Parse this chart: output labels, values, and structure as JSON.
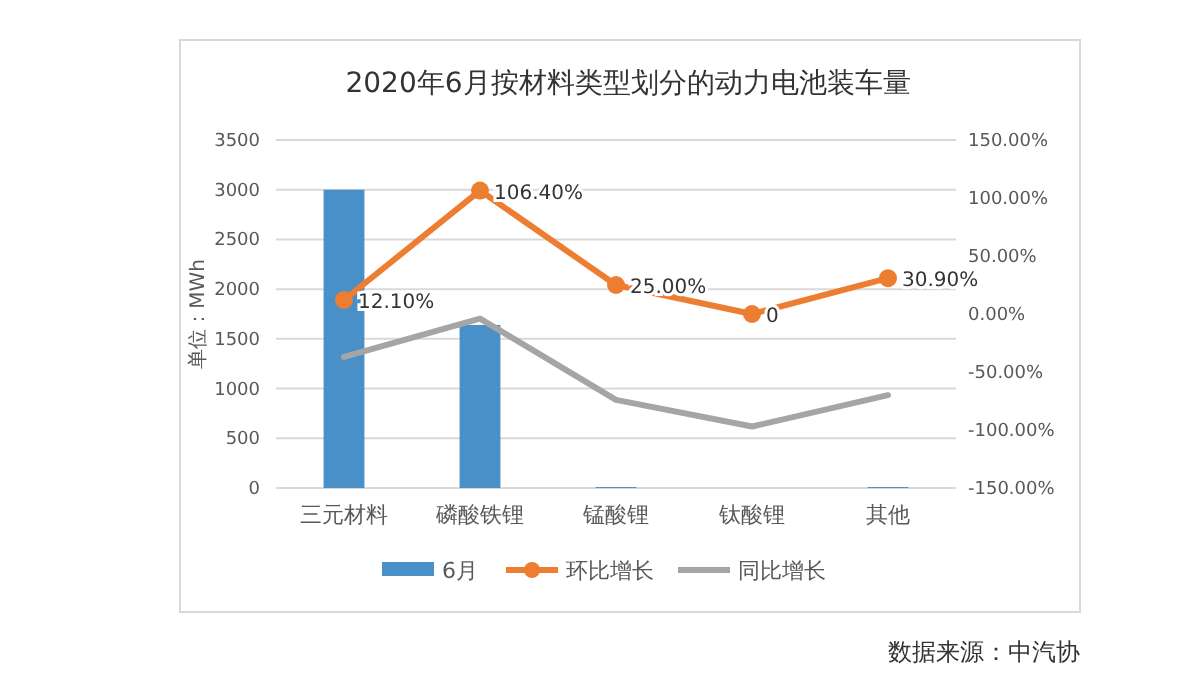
{
  "chart_data": {
    "type": "bar",
    "title": "2020年6月按材料类型划分的动力电池装车量",
    "ylabel": "单位：MWh",
    "categories": [
      "三元材料",
      "磷酸铁锂",
      "锰酸锂",
      "钛酸锂",
      "其他"
    ],
    "series": [
      {
        "name": "6月",
        "color": "#4a90c8",
        "values": [
          3000,
          1640,
          10,
          0,
          10
        ]
      },
      {
        "name": "环比增长",
        "type": "line",
        "axis": "y2",
        "color": "#ed7d31",
        "marker": "circle",
        "values": [
          12.1,
          106.4,
          25,
          0,
          30.9
        ],
        "value_labels": [
          "12.10%",
          "106.40%",
          "25.00%",
          "0",
          "30.90%"
        ]
      },
      {
        "name": "同比增长",
        "type": "line",
        "axis": "y2",
        "color": "#a5a5a5",
        "marker": "none",
        "values": [
          -37,
          -4,
          -74,
          -97,
          -70
        ]
      }
    ],
    "ylim": [
      0,
      3500
    ],
    "yticks": [
      0,
      500,
      1000,
      1500,
      2000,
      2500,
      3000,
      3500
    ],
    "y2lim": [
      -150,
      150
    ],
    "y2ticks": [
      {
        "value": -150,
        "label": "-150.00%"
      },
      {
        "value": -100,
        "label": "-100.00%"
      },
      {
        "value": -50,
        "label": "-50.00%"
      },
      {
        "value": 0,
        "label": "0.00%"
      },
      {
        "value": 50,
        "label": "50.00%"
      },
      {
        "value": 100,
        "label": "100.00%"
      },
      {
        "value": 150,
        "label": "150.00%"
      }
    ],
    "grid": "y",
    "legend": "bottom",
    "annotations": [
      "数据来源：中汽协"
    ]
  }
}
